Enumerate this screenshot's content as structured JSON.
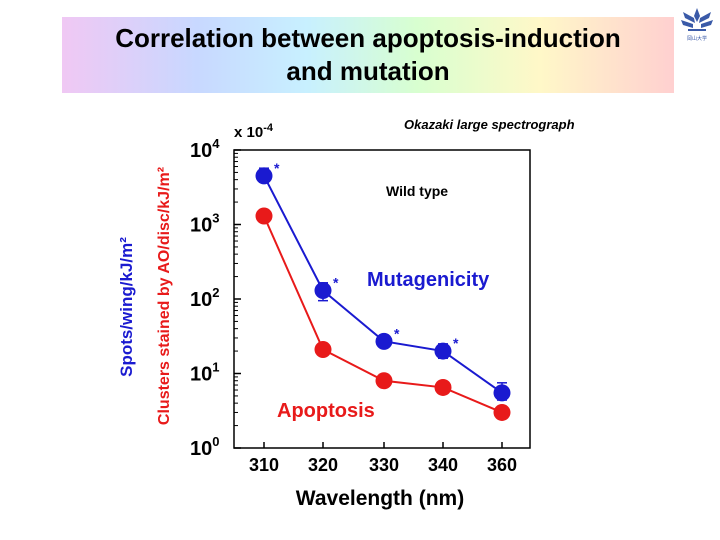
{
  "slide": {
    "title_line1": "Correlation between apoptosis-induction",
    "title_line2": "and mutation",
    "logo_label": "岡山大学"
  },
  "chart_data": {
    "type": "line",
    "subtitle": "Okazaki large spectrograph",
    "annotation": "Wild type",
    "y_multiplier": "x 10",
    "y_multiplier_exp": "-4",
    "xlabel": "Wavelength (nm)",
    "ylabel_left": "Spots/wing/kJ/m²",
    "ylabel_right": "Clusters stained by AO/disc/kJ/m²",
    "categories": [
      "310",
      "320",
      "330",
      "340",
      "360"
    ],
    "yscale": "log",
    "ylim": [
      1,
      10000
    ],
    "yticks": [
      {
        "base": "10",
        "exp": "0",
        "value": 1
      },
      {
        "base": "10",
        "exp": "1",
        "value": 10
      },
      {
        "base": "10",
        "exp": "2",
        "value": 100
      },
      {
        "base": "10",
        "exp": "3",
        "value": 1000
      },
      {
        "base": "10",
        "exp": "4",
        "value": 10000
      }
    ],
    "series": [
      {
        "name": "Mutagenicity",
        "color": "#1a1ad0",
        "values": [
          4500,
          130,
          27,
          20,
          5.5
        ],
        "err_low": [
          3700,
          95,
          24,
          16,
          4.4
        ],
        "err_high": [
          5700,
          165,
          30,
          25,
          7.5
        ],
        "significance": [
          "*",
          "*",
          "*",
          "*",
          ""
        ]
      },
      {
        "name": "Apoptosis",
        "color": "#e81a1a",
        "values": [
          1300,
          21,
          8,
          6.5,
          3
        ]
      }
    ]
  }
}
